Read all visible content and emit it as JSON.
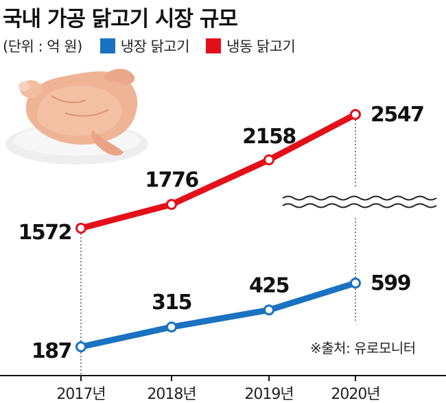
{
  "title": "국내 가공 닭고기 시장 규모",
  "unit_label": "(단위 : 억 원)",
  "source": "※출처: 유로모니터",
  "colors": {
    "chilled": "#1a72c0",
    "frozen": "#e3101a",
    "chicken_skin": "#efb496",
    "plate": "#f0f0f0"
  },
  "chart_data": {
    "type": "line",
    "x": [
      "2017년",
      "2018년",
      "2019년",
      "2020년"
    ],
    "series": [
      {
        "name": "냉장 닭고기",
        "values": [
          187,
          315,
          425,
          599
        ],
        "color": "#1a72c0"
      },
      {
        "name": "냉동 닭고기",
        "values": [
          1572,
          1776,
          2158,
          2547
        ],
        "color": "#e3101a"
      }
    ],
    "axis_break": true,
    "grid": false,
    "legend_position": "top-left"
  }
}
